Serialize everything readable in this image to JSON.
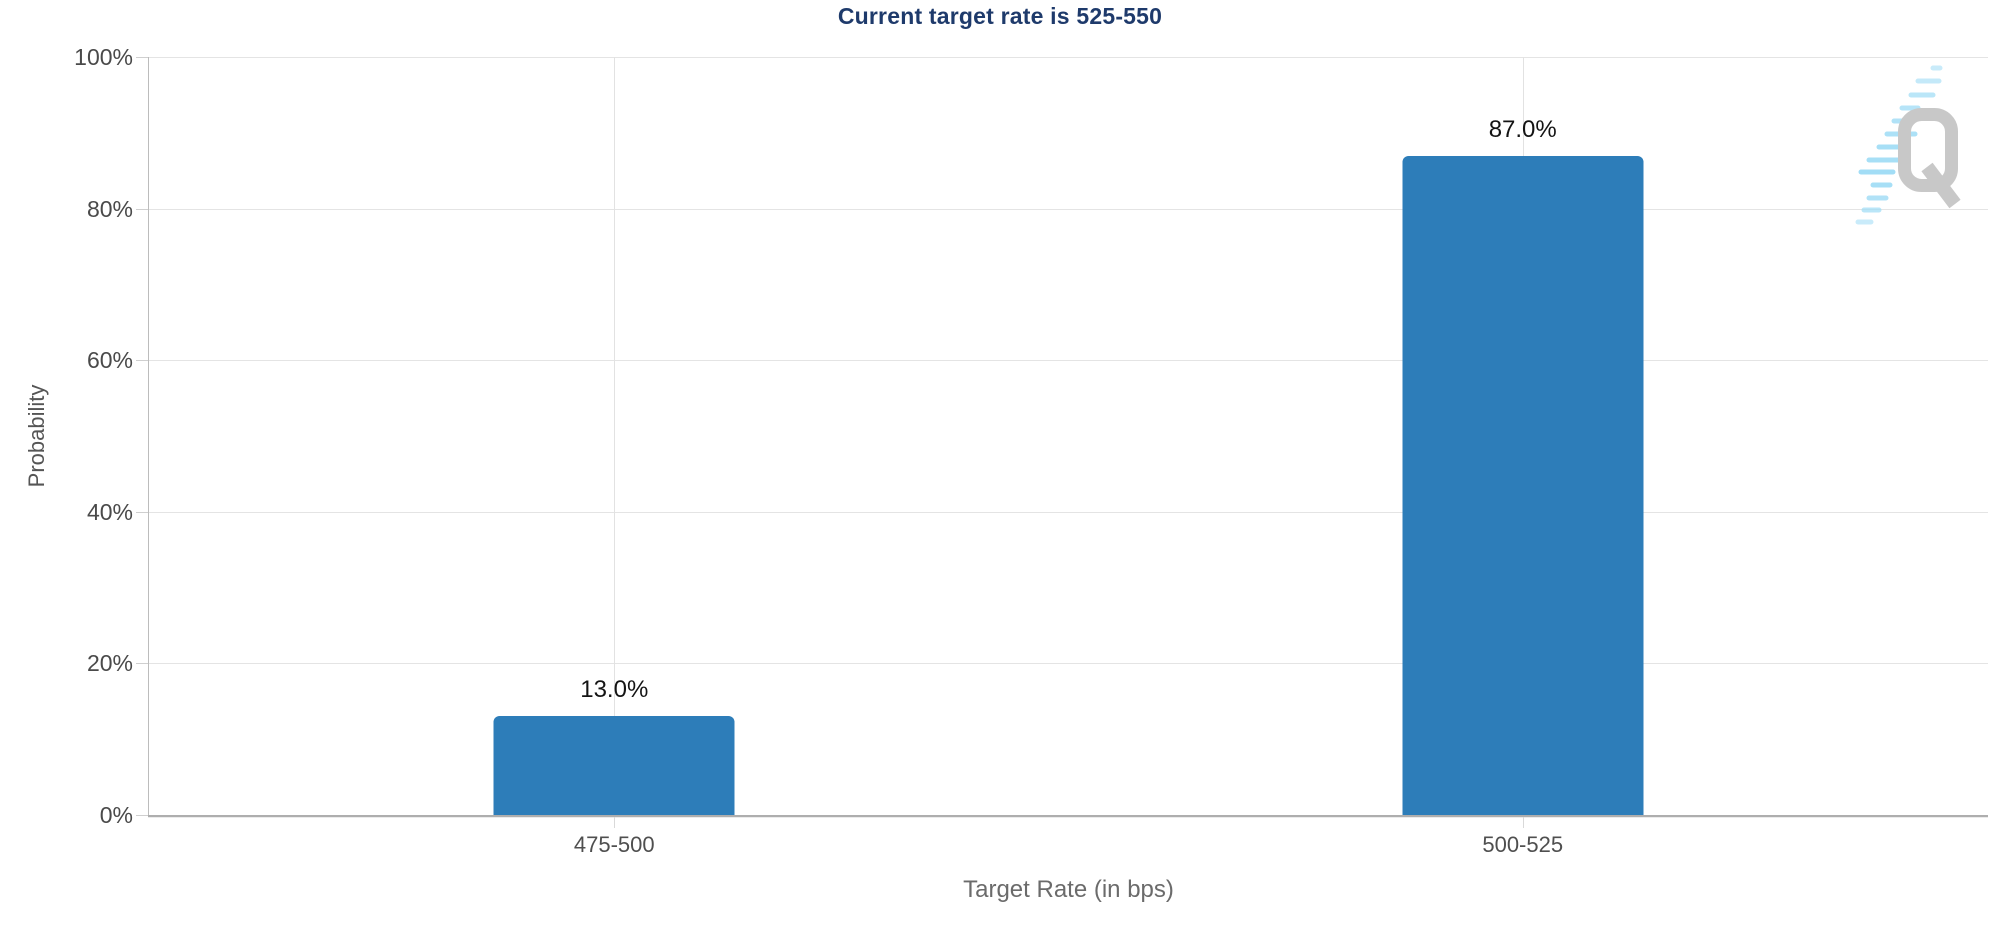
{
  "chart_data": {
    "type": "bar",
    "title": "Current target rate is 525-550",
    "categories": [
      "475-500",
      "500-525"
    ],
    "values": [
      13.0,
      87.0
    ],
    "value_labels": [
      "13.0%",
      "87.0%"
    ],
    "xlabel": "Target Rate (in bps)",
    "ylabel": "Probability",
    "ylim": [
      0,
      100
    ],
    "yticks": [
      "0%",
      "20%",
      "40%",
      "60%",
      "80%",
      "100%"
    ],
    "grid": true,
    "legend": "none",
    "bar_color": "#2d7db9",
    "title_color": "#1e3a6b"
  },
  "watermark": {
    "letter": "Q",
    "q_color": "#c8c8c8",
    "dash_color": "#9edcf6"
  }
}
